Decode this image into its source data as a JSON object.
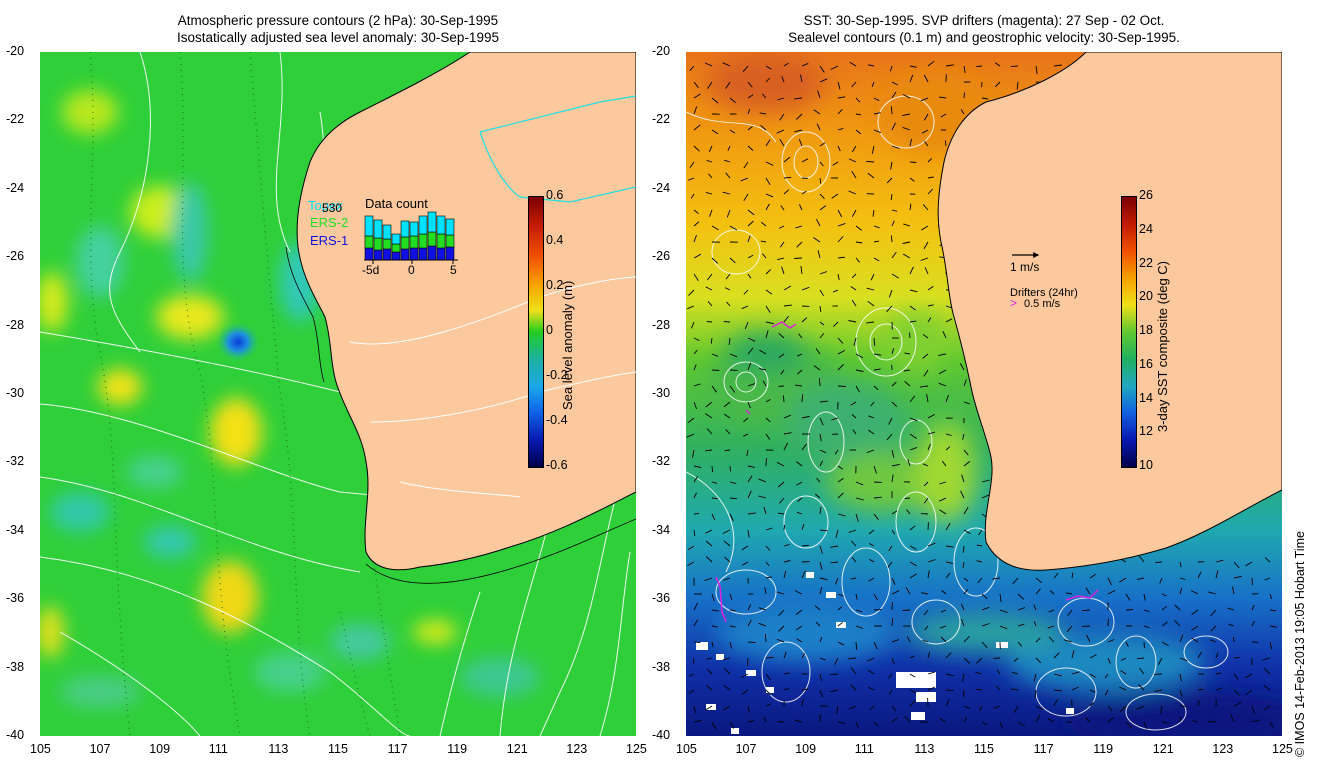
{
  "left_panel": {
    "title_line1": "Atmospheric pressure contours (2 hPa): 30-Sep-1995",
    "title_line2": "Isostatically adjusted sea level anomaly: 30-Sep-1995",
    "legend": {
      "topex_label": "Topex",
      "topex_count": "530",
      "ers2_label": "ERS-2",
      "ers1_label": "ERS-1",
      "data_count_title": "Data count",
      "axis_ticks": [
        "-5d",
        "0",
        "5"
      ],
      "colors": {
        "topex": "#00e0ff",
        "ers2": "#22dd22",
        "ers1": "#1010e0"
      }
    },
    "colorbar": {
      "label": "Sea level anomaly (m)",
      "ticks": [
        "0.6",
        "0.4",
        "0.2",
        "0",
        "-0.2",
        "-0.4",
        "-0.6"
      ],
      "min": -0.6,
      "max": 0.6
    }
  },
  "right_panel": {
    "title_line1": "SST: 30-Sep-1995. SVP drifters (magenta): 27 Sep - 02 Oct.",
    "title_line2": "Sealevel contours (0.1 m) and geostrophic velocity: 30-Sep-1995.",
    "velocity_key": "1 m/s",
    "drifters_title": "Drifters (24hr)",
    "drifters_speed": "0.5 m/s",
    "colorbar": {
      "label": "3-day SST composite (deg C)",
      "ticks": [
        "26",
        "24",
        "22",
        "20",
        "18",
        "16",
        "14",
        "12",
        "10"
      ],
      "min": 10,
      "max": 26
    }
  },
  "axes": {
    "lat_ticks": [
      "-20",
      "-22",
      "-24",
      "-26",
      "-28",
      "-30",
      "-32",
      "-34",
      "-36",
      "-38",
      "-40"
    ],
    "lon_ticks": [
      "105",
      "107",
      "109",
      "111",
      "113",
      "115",
      "117",
      "119",
      "121",
      "123",
      "125"
    ]
  },
  "colors": {
    "land": "#fbc99d",
    "anomaly_green": "#22cc22",
    "sst_warm": "#ee8a10",
    "sst_cold": "#1020a0"
  },
  "credit": "© IMOS 14-Feb-2013 19:05 Hobart Time"
}
